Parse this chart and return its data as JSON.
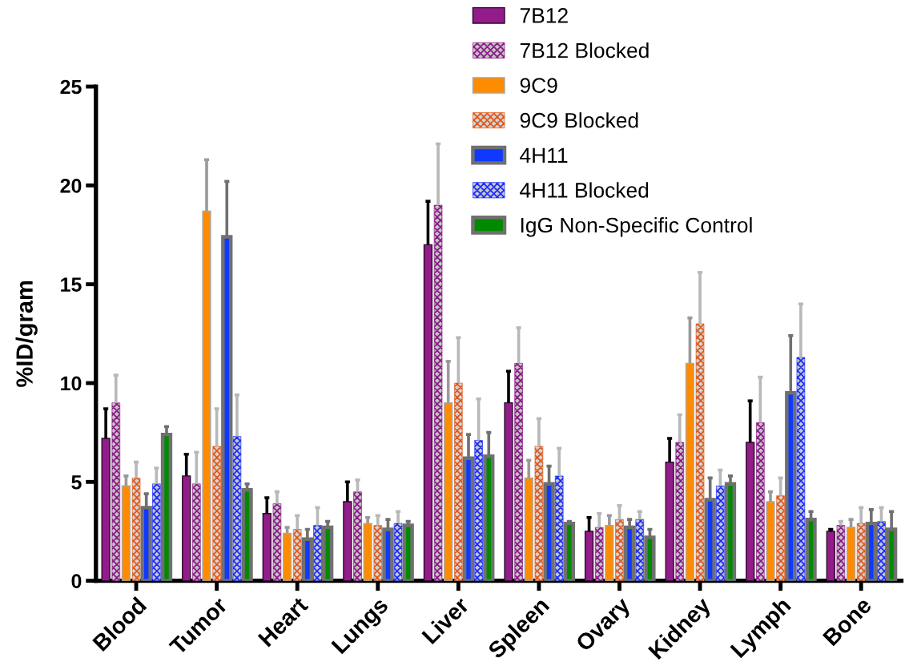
{
  "chart_data": {
    "type": "bar",
    "ylabel": "%ID/gram",
    "categories": [
      "Blood",
      "Tumor",
      "Heart",
      "Lungs",
      "Liver",
      "Spleen",
      "Ovary",
      "Kidney",
      "Lymph",
      "Bone"
    ],
    "ylim": [
      0,
      25
    ],
    "yticks": [
      0,
      5,
      10,
      15,
      20,
      25
    ],
    "legend": "top right",
    "series": [
      {
        "name": "7B12",
        "color": "#931c8b",
        "values": [
          7.2,
          5.3,
          3.4,
          4.0,
          17.0,
          9.0,
          2.5,
          6.0,
          7.0,
          2.5
        ],
        "errors": [
          [
            7.2,
            8.7
          ],
          [
            5.3,
            6.4
          ],
          [
            3.4,
            4.2
          ],
          [
            4.0,
            5.0
          ],
          [
            17.0,
            19.2
          ],
          [
            9.0,
            10.6
          ],
          [
            2.5,
            3.2
          ],
          [
            6.0,
            7.2
          ],
          [
            7.0,
            9.1
          ],
          [
            2.5,
            2.6
          ]
        ]
      },
      {
        "name": "7B12 Blocked",
        "color": "#8c1a88",
        "values": [
          9.0,
          4.9,
          3.9,
          4.5,
          19.0,
          11.0,
          2.7,
          7.0,
          8.0,
          2.8
        ],
        "errors": [
          [
            9.0,
            10.4
          ],
          [
            4.9,
            6.5
          ],
          [
            3.9,
            4.5
          ],
          [
            4.5,
            5.1
          ],
          [
            19.0,
            22.1
          ],
          [
            11.0,
            12.8
          ],
          [
            2.7,
            3.4
          ],
          [
            7.0,
            8.4
          ],
          [
            8.0,
            10.3
          ],
          [
            2.8,
            3.0
          ]
        ]
      },
      {
        "name": "9C9",
        "color": "#ff8c00",
        "values": [
          4.8,
          18.7,
          2.4,
          2.9,
          9.0,
          5.2,
          2.8,
          11.0,
          4.0,
          2.7
        ],
        "errors": [
          [
            4.8,
            5.3
          ],
          [
            18.7,
            21.3
          ],
          [
            2.4,
            2.7
          ],
          [
            2.9,
            3.2
          ],
          [
            9.0,
            11.1
          ],
          [
            5.2,
            6.1
          ],
          [
            2.8,
            3.3
          ],
          [
            11.0,
            13.3
          ],
          [
            4.0,
            4.5
          ],
          [
            2.7,
            3.1
          ]
        ]
      },
      {
        "name": "9C9 Blocked",
        "color": "#e0581c",
        "values": [
          5.2,
          6.8,
          2.6,
          2.8,
          10.0,
          6.8,
          3.1,
          13.0,
          4.3,
          2.9
        ],
        "errors": [
          [
            5.2,
            6.0
          ],
          [
            6.8,
            8.7
          ],
          [
            2.6,
            3.3
          ],
          [
            2.8,
            3.3
          ],
          [
            10.0,
            12.3
          ],
          [
            6.8,
            8.2
          ],
          [
            3.1,
            3.8
          ],
          [
            13.0,
            15.6
          ],
          [
            4.3,
            5.2
          ],
          [
            2.9,
            3.7
          ]
        ]
      },
      {
        "name": "4H11",
        "color": "#1039ff",
        "values": [
          3.7,
          17.4,
          2.1,
          2.6,
          6.2,
          4.9,
          2.7,
          4.1,
          9.5,
          2.9
        ],
        "errors": [
          [
            3.7,
            4.4
          ],
          [
            17.4,
            20.2
          ],
          [
            2.1,
            2.6
          ],
          [
            2.6,
            3.1
          ],
          [
            6.2,
            7.4
          ],
          [
            4.9,
            5.8
          ],
          [
            2.7,
            3.1
          ],
          [
            4.1,
            5.2
          ],
          [
            9.5,
            12.4
          ],
          [
            2.9,
            3.6
          ]
        ]
      },
      {
        "name": "4H11 Blocked",
        "color": "#1a2cff",
        "values": [
          4.9,
          7.3,
          2.8,
          2.9,
          7.1,
          5.3,
          3.1,
          4.8,
          11.3,
          3.0
        ],
        "errors": [
          [
            4.9,
            5.7
          ],
          [
            7.3,
            9.4
          ],
          [
            2.8,
            3.7
          ],
          [
            2.9,
            3.5
          ],
          [
            7.1,
            9.2
          ],
          [
            5.3,
            6.7
          ],
          [
            3.1,
            3.5
          ],
          [
            4.8,
            5.6
          ],
          [
            11.3,
            14.0
          ],
          [
            3.0,
            3.7
          ]
        ]
      },
      {
        "name": "IgG Non-Specific Control",
        "color": "#008a00",
        "values": [
          7.4,
          4.6,
          2.7,
          2.8,
          6.3,
          2.9,
          2.2,
          4.9,
          3.1,
          2.6
        ],
        "errors": [
          [
            7.4,
            7.8
          ],
          [
            4.6,
            4.9
          ],
          [
            2.7,
            3.0
          ],
          [
            2.8,
            3.0
          ],
          [
            6.3,
            7.5
          ],
          [
            2.9,
            3.0
          ],
          [
            2.2,
            2.6
          ],
          [
            4.9,
            5.3
          ],
          [
            3.1,
            3.5
          ],
          [
            2.6,
            3.5
          ]
        ]
      }
    ]
  }
}
